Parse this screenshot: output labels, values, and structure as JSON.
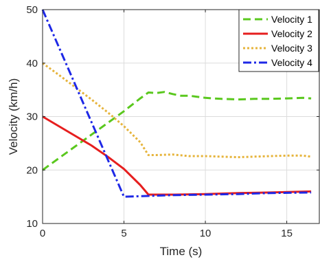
{
  "chart_data": {
    "type": "line",
    "title": "",
    "xlabel": "Time (s)",
    "ylabel": "Velocity (km/h)",
    "xlim": [
      0,
      17
    ],
    "ylim": [
      10,
      50
    ],
    "xticks": [
      0,
      5,
      10,
      15
    ],
    "yticks": [
      10,
      20,
      30,
      40,
      50
    ],
    "grid": true,
    "legend_position": "top-right",
    "series": [
      {
        "name": "Velocity 1",
        "color": "#5ac81e",
        "style": "dashed",
        "x": [
          0,
          1,
          2,
          3,
          4,
          5,
          6,
          6.5,
          7,
          7.5,
          8,
          8.5,
          9,
          9.5,
          10,
          10.5,
          11,
          12,
          13,
          14,
          15,
          16,
          16.5
        ],
        "y": [
          20,
          22.2,
          24.4,
          26.6,
          28.8,
          31,
          33.4,
          34.5,
          34.4,
          34.6,
          34.2,
          33.9,
          33.9,
          33.7,
          33.5,
          33.4,
          33.3,
          33.2,
          33.3,
          33.3,
          33.4,
          33.5,
          33.4
        ]
      },
      {
        "name": "Velocity 2",
        "color": "#e61e1e",
        "style": "solid",
        "x": [
          0,
          1,
          2,
          3,
          4,
          5,
          6,
          6.5,
          8,
          10,
          12,
          14,
          16.5
        ],
        "y": [
          30,
          28.2,
          26.4,
          24.6,
          22.5,
          20.2,
          17.2,
          15.4,
          15.4,
          15.5,
          15.7,
          15.8,
          16
        ]
      },
      {
        "name": "Velocity 3",
        "color": "#e6b43c",
        "style": "dotted",
        "x": [
          0,
          1,
          2,
          3,
          4,
          5,
          6,
          6.5,
          7,
          8,
          9,
          10,
          11,
          12,
          13,
          14,
          15,
          16,
          16.5
        ],
        "y": [
          40,
          37.8,
          35.5,
          33.2,
          30.8,
          28.2,
          25.2,
          22.8,
          22.8,
          22.9,
          22.6,
          22.6,
          22.5,
          22.4,
          22.5,
          22.6,
          22.7,
          22.7,
          22.5
        ]
      },
      {
        "name": "Velocity 4",
        "color": "#1e28e6",
        "style": "dashdot",
        "x": [
          0,
          1,
          2,
          3,
          4,
          5,
          6,
          8,
          10,
          12,
          14,
          16.5
        ],
        "y": [
          50,
          43,
          36,
          29,
          22,
          15,
          15.1,
          15.3,
          15.4,
          15.5,
          15.7,
          15.8
        ]
      }
    ]
  }
}
